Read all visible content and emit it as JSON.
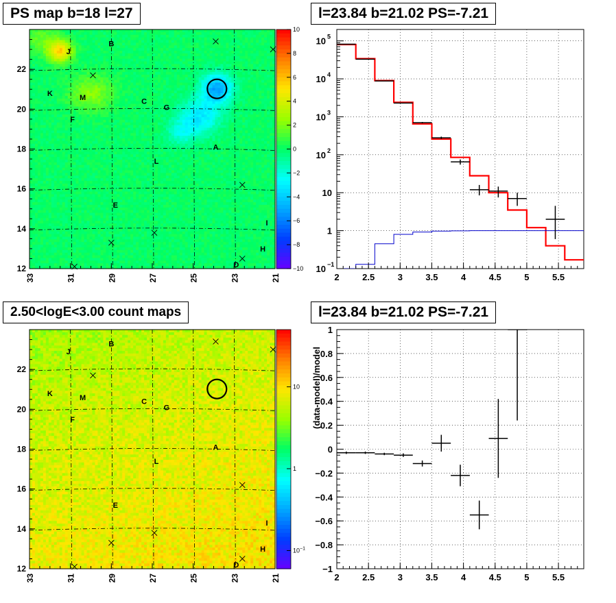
{
  "panels": {
    "top_left_title": "PS map b=18 l=27",
    "top_right_title": "l=23.84 b=21.02 PS=-7.21",
    "bottom_left_title": "2.50<logE<3.00 count maps",
    "bottom_right_title": "l=23.84 b=21.02 PS=-7.21"
  },
  "chart_data": [
    {
      "type": "heatmap",
      "title": "PS map b=18 l=27",
      "xlim": [
        33,
        21
      ],
      "ylim": [
        12,
        24
      ],
      "x_ticks": [
        "33",
        "31",
        "29",
        "27",
        "25",
        "23",
        "21"
      ],
      "y_ticks": [
        "12",
        "14",
        "16",
        "18",
        "20",
        "22"
      ],
      "colorbar_range": [
        -10,
        10
      ],
      "colorbar_ticks": [
        "10",
        "8",
        "6",
        "4",
        "2",
        "0",
        "−2",
        "−4",
        "−6",
        "−8",
        "−10"
      ],
      "background_value": 0,
      "sources": [
        {
          "label": "A",
          "l": 23.9,
          "b": 18.1
        },
        {
          "label": "B",
          "l": 29.0,
          "b": 23.3
        },
        {
          "label": "C",
          "l": 27.4,
          "b": 20.4
        },
        {
          "label": "D",
          "l": 22.9,
          "b": 12.2
        },
        {
          "label": "E",
          "l": 28.8,
          "b": 15.2
        },
        {
          "label": "F",
          "l": 30.9,
          "b": 19.5
        },
        {
          "label": "G",
          "l": 26.3,
          "b": 20.1
        },
        {
          "label": "H",
          "l": 21.6,
          "b": 13.0
        },
        {
          "label": "I",
          "l": 21.4,
          "b": 14.3
        },
        {
          "label": "J",
          "l": 31.1,
          "b": 22.9
        },
        {
          "label": "K",
          "l": 32.0,
          "b": 20.8
        },
        {
          "label": "L",
          "l": 26.8,
          "b": 17.4
        },
        {
          "label": "M",
          "l": 30.4,
          "b": 20.6
        }
      ],
      "crosses": [
        {
          "l": 23.9,
          "b": 23.4
        },
        {
          "l": 21.1,
          "b": 23.0
        },
        {
          "l": 29.9,
          "b": 21.7
        },
        {
          "l": 22.6,
          "b": 16.2
        },
        {
          "l": 26.9,
          "b": 13.8
        },
        {
          "l": 29.0,
          "b": 13.3
        },
        {
          "l": 22.6,
          "b": 12.5
        },
        {
          "l": 30.8,
          "b": 12.1
        }
      ],
      "circle": {
        "l": 23.84,
        "b": 21.02
      }
    },
    {
      "type": "line",
      "title": "l=23.84 b=21.02 PS=-7.21",
      "xlim": [
        2,
        5.9
      ],
      "ylim": [
        0.1,
        200000
      ],
      "yscale": "log",
      "grid": true,
      "x_ticks": [
        "2",
        "2.5",
        "3",
        "3.5",
        "4",
        "4.5",
        "5",
        "5.5"
      ],
      "y_ticks": [
        {
          "value": 100000,
          "base": "10",
          "exp": "5"
        },
        {
          "value": 10000,
          "base": "10",
          "exp": "4"
        },
        {
          "value": 1000,
          "base": "10",
          "exp": "3"
        },
        {
          "value": 100,
          "base": "10",
          "exp": "2"
        },
        {
          "value": 10,
          "base": "10",
          "exp": ""
        },
        {
          "value": 1,
          "base": "1",
          "exp": ""
        },
        {
          "value": 0.1,
          "base": "10",
          "exp": "−1"
        }
      ],
      "bin_edges": [
        2.0,
        2.3,
        2.6,
        2.9,
        3.2,
        3.5,
        3.8,
        4.1,
        4.4,
        4.7,
        5.0,
        5.3,
        5.6,
        5.9
      ],
      "series": [
        {
          "role": "total model",
          "color": "#ff0000",
          "style": "step",
          "values": [
            80000,
            34000,
            9000,
            2400,
            650,
            260,
            85,
            28,
            10,
            3.5,
            1.2,
            0.4,
            0.17
          ]
        },
        {
          "role": "point source model",
          "color": "#0000cc",
          "style": "step",
          "values": [
            0.1,
            0.13,
            0.45,
            0.8,
            0.92,
            0.97,
            0.99,
            1.0,
            1.0,
            1.0,
            1.0,
            1.0,
            1.0
          ]
        },
        {
          "role": "data",
          "color": "#000000",
          "style": "errorbar",
          "x": [
            2.15,
            2.45,
            2.75,
            3.05,
            3.35,
            3.65,
            3.95,
            4.25,
            4.55,
            4.85,
            5.45
          ],
          "values": [
            82000,
            33000,
            8800,
            2300,
            700,
            280,
            65,
            12,
            11,
            7,
            2
          ],
          "err_low": [
            81500,
            32800,
            8700,
            2250,
            670,
            260,
            55,
            8.5,
            7.5,
            4.5,
            0.6
          ],
          "err_high": [
            82500,
            33200,
            8900,
            2350,
            730,
            300,
            75,
            16,
            14.5,
            10,
            4.5
          ]
        }
      ]
    },
    {
      "type": "heatmap",
      "title": "2.50<logE<3.00 count maps",
      "xlim": [
        33,
        21
      ],
      "ylim": [
        12,
        24
      ],
      "x_ticks": [
        "33",
        "31",
        "29",
        "27",
        "25",
        "23",
        "21"
      ],
      "y_ticks": [
        "12",
        "14",
        "16",
        "18",
        "20",
        "22"
      ],
      "colorbar_scale": "log",
      "colorbar_range": [
        0.06,
        50
      ],
      "colorbar_ticks": [
        {
          "value": 10,
          "label": "10"
        },
        {
          "value": 1,
          "label": "1"
        },
        {
          "value": 0.1,
          "label": "10",
          "exp": "−1"
        }
      ],
      "counts_range": [
        2,
        40
      ],
      "sources": [
        {
          "label": "A",
          "l": 23.9,
          "b": 18.1
        },
        {
          "label": "B",
          "l": 29.0,
          "b": 23.3
        },
        {
          "label": "C",
          "l": 27.4,
          "b": 20.4
        },
        {
          "label": "D",
          "l": 22.9,
          "b": 12.2
        },
        {
          "label": "E",
          "l": 28.8,
          "b": 15.2
        },
        {
          "label": "F",
          "l": 30.9,
          "b": 19.5
        },
        {
          "label": "G",
          "l": 26.3,
          "b": 20.1
        },
        {
          "label": "H",
          "l": 21.6,
          "b": 13.0
        },
        {
          "label": "I",
          "l": 21.4,
          "b": 14.3
        },
        {
          "label": "J",
          "l": 31.1,
          "b": 22.9
        },
        {
          "label": "K",
          "l": 32.0,
          "b": 20.8
        },
        {
          "label": "L",
          "l": 26.8,
          "b": 17.4
        },
        {
          "label": "M",
          "l": 30.4,
          "b": 20.6
        }
      ],
      "crosses": [
        {
          "l": 23.9,
          "b": 23.4
        },
        {
          "l": 21.1,
          "b": 23.0
        },
        {
          "l": 29.9,
          "b": 21.7
        },
        {
          "l": 22.6,
          "b": 16.2
        },
        {
          "l": 26.9,
          "b": 13.8
        },
        {
          "l": 29.0,
          "b": 13.3
        },
        {
          "l": 22.6,
          "b": 12.5
        },
        {
          "l": 30.8,
          "b": 12.1
        }
      ],
      "circle": {
        "l": 23.84,
        "b": 21.02
      }
    },
    {
      "type": "scatter",
      "title": "l=23.84 b=21.02 PS=-7.21",
      "ylabel": "(data-model)/model",
      "xlim": [
        2,
        5.9
      ],
      "ylim": [
        -1,
        1
      ],
      "grid": true,
      "x_ticks": [
        "2",
        "2.5",
        "3",
        "3.5",
        "4",
        "4.5",
        "5",
        "5.5"
      ],
      "y_ticks": [
        "1",
        "0.8",
        "0.6",
        "0.4",
        "0.2",
        "0",
        "−0.2",
        "−0.4",
        "−0.6",
        "−0.8",
        "−1"
      ],
      "x": [
        2.15,
        2.45,
        2.75,
        3.05,
        3.35,
        3.65,
        3.95,
        4.25,
        4.55,
        4.85
      ],
      "values": [
        -0.03,
        -0.03,
        -0.04,
        -0.05,
        -0.12,
        0.05,
        -0.22,
        -0.55,
        0.09,
        1.0
      ],
      "err_low": [
        -0.04,
        -0.04,
        -0.05,
        -0.065,
        -0.145,
        -0.02,
        -0.31,
        -0.67,
        -0.24,
        0.24
      ],
      "err_high": [
        -0.02,
        -0.02,
        -0.03,
        -0.035,
        -0.095,
        0.12,
        -0.13,
        -0.43,
        0.42,
        1.0
      ],
      "x_halfwidth": 0.15
    }
  ]
}
